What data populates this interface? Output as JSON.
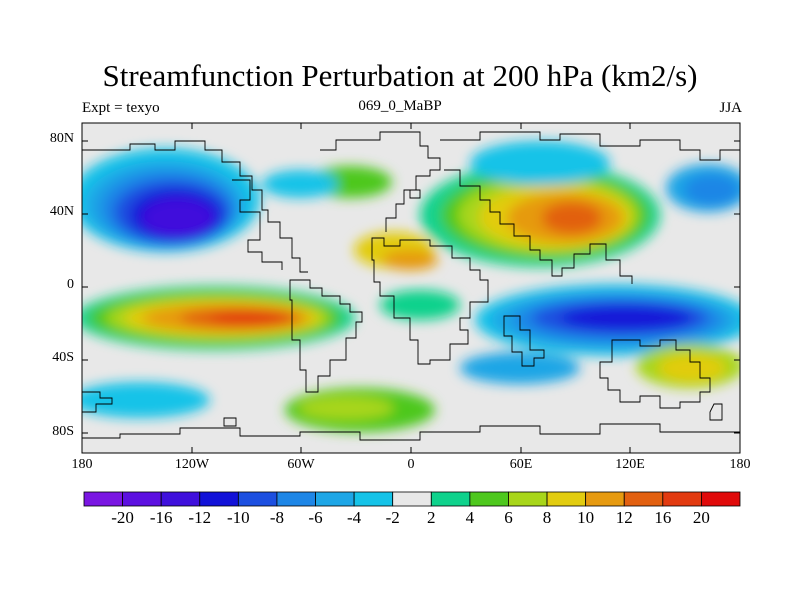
{
  "title": "Streamfunction Perturbation at 200 hPa (km2/s)",
  "subtitle_left": "Expt = texyo",
  "subtitle_center": "069_0_MaBP",
  "subtitle_right": "JJA",
  "lat_labels": [
    "80N",
    "40N",
    "0",
    "40S",
    "80S"
  ],
  "lon_labels": [
    "180",
    "120W",
    "60W",
    "0",
    "60E",
    "120E",
    "180"
  ],
  "colorbar": {
    "labels": [
      "-20",
      "-16",
      "-12",
      "-10",
      "-8",
      "-6",
      "-4",
      "-2",
      "2",
      "4",
      "6",
      "8",
      "10",
      "12",
      "16",
      "20"
    ],
    "colors": [
      "#7a16e2",
      "#5c10e0",
      "#3f10dc",
      "#1212d8",
      "#1c4fe0",
      "#1e86e6",
      "#1ea6e6",
      "#15c3e8",
      "#e8e8e8",
      "#0fd28c",
      "#4ec81e",
      "#a8d61a",
      "#e2cc10",
      "#e69a10",
      "#e26010",
      "#e23a10",
      "#e00a0a"
    ]
  },
  "colors": {
    "land_background": "#e8e8e8",
    "coastline": "#000000"
  }
}
